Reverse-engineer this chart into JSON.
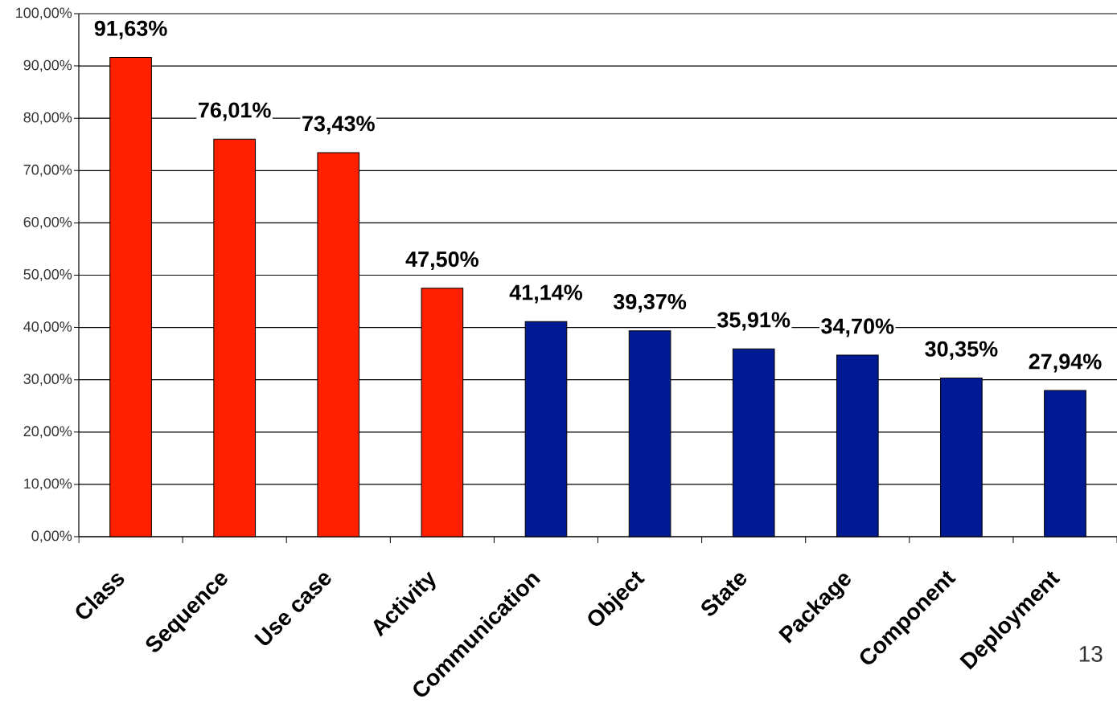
{
  "chart_data": {
    "type": "bar",
    "categories": [
      "Class",
      "Sequence",
      "Use case",
      "Activity",
      "Communication",
      "Object",
      "State",
      "Package",
      "Component",
      "Deployment"
    ],
    "values": [
      91.63,
      76.01,
      73.43,
      47.5,
      41.14,
      39.37,
      35.91,
      34.7,
      30.35,
      27.94
    ],
    "colors": [
      "#ff2000",
      "#ff2000",
      "#ff2000",
      "#ff2000",
      "#001a93",
      "#001a93",
      "#001a93",
      "#001a93",
      "#001a93",
      "#001a93"
    ],
    "value_labels": [
      "91,63%",
      "76,01%",
      "73,43%",
      "47,50%",
      "41,14%",
      "39,37%",
      "35,91%",
      "34,70%",
      "30,35%",
      "27,94%"
    ],
    "ylim": [
      0,
      100
    ],
    "yticks": [
      {
        "value": 0,
        "label": "0,00%"
      },
      {
        "value": 10,
        "label": "10,00%"
      },
      {
        "value": 20,
        "label": "20,00%"
      },
      {
        "value": 30,
        "label": "30,00%"
      },
      {
        "value": 40,
        "label": "40,00%"
      },
      {
        "value": 50,
        "label": "50,00%"
      },
      {
        "value": 60,
        "label": "60,00%"
      },
      {
        "value": 70,
        "label": "70,00%"
      },
      {
        "value": 80,
        "label": "80,00%"
      },
      {
        "value": 90,
        "label": "90,00%"
      },
      {
        "value": 100,
        "label": "100,00%"
      }
    ],
    "grid": "y",
    "annotations": [
      "13"
    ]
  }
}
